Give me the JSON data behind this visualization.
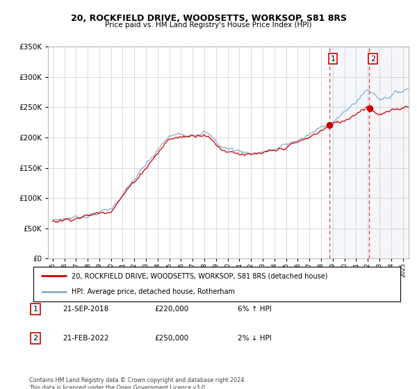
{
  "title": "20, ROCKFIELD DRIVE, WOODSETTS, WORKSOP, S81 8RS",
  "subtitle": "Price paid vs. HM Land Registry's House Price Index (HPI)",
  "legend_line1": "20, ROCKFIELD DRIVE, WOODSETTS, WORKSOP, S81 8RS (detached house)",
  "legend_line2": "HPI: Average price, detached house, Rotherham",
  "footer": "Contains HM Land Registry data © Crown copyright and database right 2024.\nThis data is licensed under the Open Government Licence v3.0.",
  "marker1_date": "21-SEP-2018",
  "marker1_price": "£220,000",
  "marker1_hpi": "6% ↑ HPI",
  "marker2_date": "21-FEB-2022",
  "marker2_price": "£250,000",
  "marker2_hpi": "2% ↓ HPI",
  "sale1_year": 2018.72,
  "sale2_year": 2022.13,
  "sale1_price": 220000,
  "sale2_price": 250000,
  "red_color": "#cc0000",
  "blue_color": "#88aacc",
  "vline_color": "#dd4444",
  "grid_color": "#cccccc",
  "ylim": [
    0,
    350000
  ],
  "xlim_start": 1994.6,
  "xlim_end": 2025.5
}
